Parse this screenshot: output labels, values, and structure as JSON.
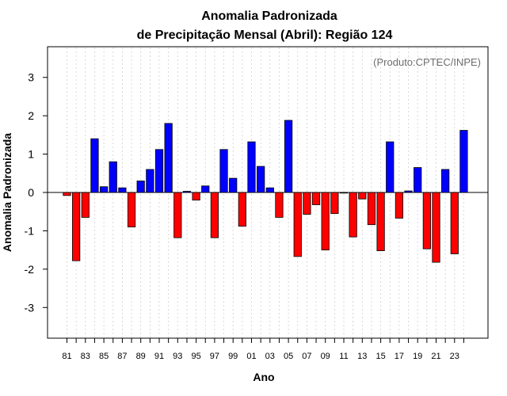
{
  "chart_data": {
    "type": "bar",
    "title_line1": "Anomalia Padronizada",
    "title_line2": "de Precipitação Mensal (Abril): Região 124",
    "xlabel": "Ano",
    "ylabel": "Anomalia Padronizada",
    "source_note": "(Produto:CPTEC/INPE)",
    "ylim": [
      -3.8,
      3.8
    ],
    "y_ticks": [
      -3,
      -2,
      -1,
      0,
      1,
      2,
      3
    ],
    "x_tick_labels": [
      "81",
      "83",
      "85",
      "87",
      "89",
      "91",
      "93",
      "95",
      "97",
      "99",
      "01",
      "03",
      "05",
      "07",
      "09",
      "11",
      "13",
      "15",
      "17",
      "19",
      "21",
      "23"
    ],
    "positive_color": "#0000ff",
    "negative_color": "#ff0000",
    "categories": [
      "1981",
      "1982",
      "1983",
      "1984",
      "1985",
      "1986",
      "1987",
      "1988",
      "1989",
      "1990",
      "1991",
      "1992",
      "1993",
      "1994",
      "1995",
      "1996",
      "1997",
      "1998",
      "1999",
      "2000",
      "2001",
      "2002",
      "2003",
      "2004",
      "2005",
      "2006",
      "2007",
      "2008",
      "2009",
      "2010",
      "2011",
      "2012",
      "2013",
      "2014",
      "2015",
      "2016",
      "2017",
      "2018",
      "2019",
      "2020",
      "2021",
      "2022",
      "2023",
      "2024"
    ],
    "values": [
      -0.08,
      -1.78,
      -0.65,
      1.4,
      0.15,
      0.8,
      0.12,
      -0.9,
      0.3,
      0.6,
      1.12,
      1.8,
      -1.18,
      0.03,
      -0.2,
      0.17,
      -1.18,
      1.12,
      0.37,
      -0.88,
      1.32,
      0.68,
      0.12,
      -0.65,
      1.88,
      -1.67,
      -0.57,
      -0.32,
      -1.5,
      -0.55,
      0.0,
      -1.16,
      -0.17,
      -0.84,
      -1.52,
      1.32,
      -0.67,
      0.04,
      0.65,
      -1.47,
      -1.82,
      0.6,
      -1.6,
      1.62
    ]
  }
}
